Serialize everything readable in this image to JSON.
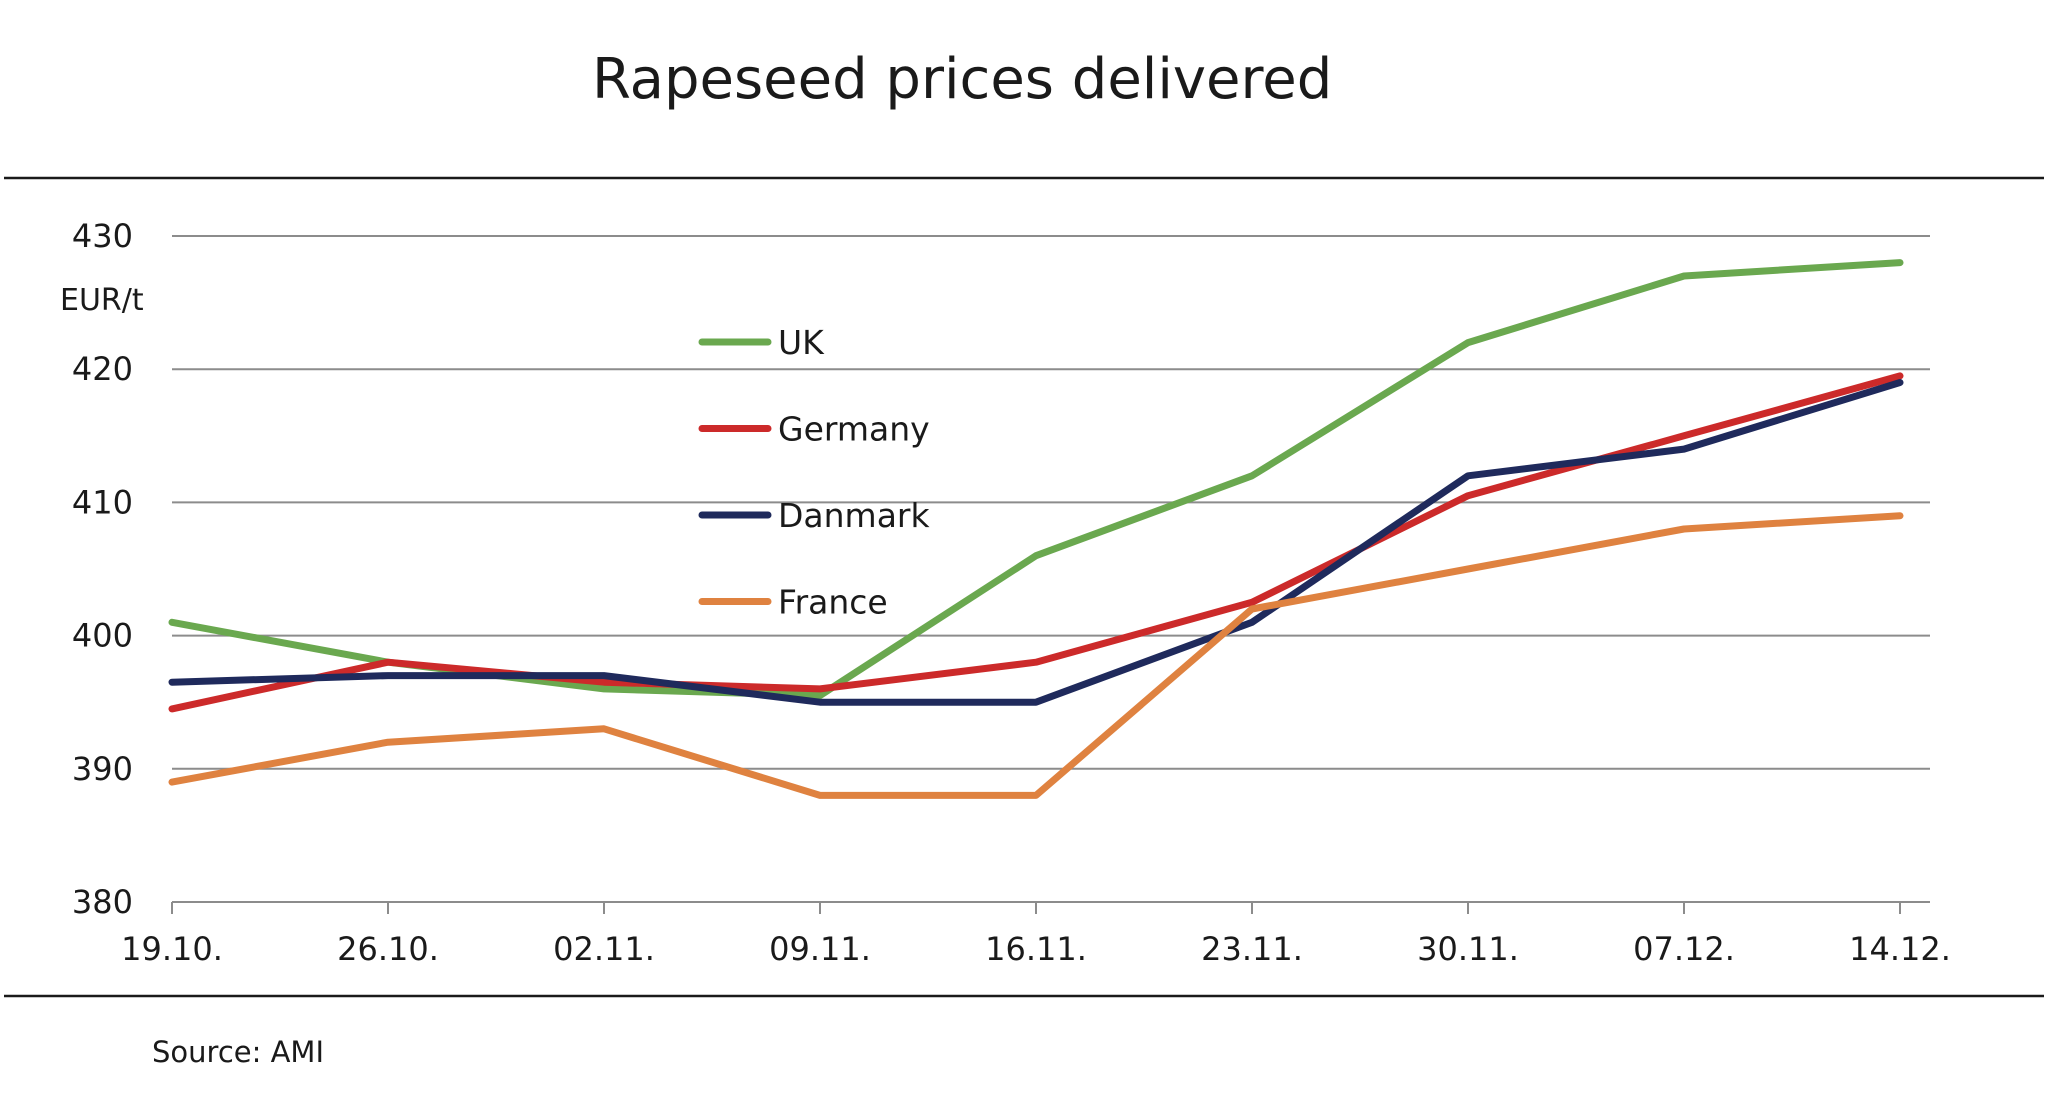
{
  "chart_data": {
    "type": "line",
    "title": "Rapeseed prices delivered",
    "ylabel": "EUR/t",
    "xlabel": "",
    "x": [
      "19.10.",
      "26.10.",
      "02.11.",
      "09.11.",
      "16.11.",
      "23.11.",
      "30.11.",
      "07.12.",
      "14.12."
    ],
    "ylim": [
      380,
      430
    ],
    "yticks": [
      380,
      390,
      400,
      410,
      420,
      430
    ],
    "grid": true,
    "legend_position": "upper-center",
    "series": [
      {
        "name": "UK",
        "color": "#6aa84f",
        "values": [
          401,
          398,
          396,
          395.5,
          406,
          412,
          422,
          427,
          428
        ]
      },
      {
        "name": "Germany",
        "color": "#cc2a2a",
        "values": [
          394.5,
          398,
          396.5,
          396,
          398,
          402.5,
          410.5,
          415,
          419.5
        ]
      },
      {
        "name": "Danmark",
        "color": "#1f2a5c",
        "values": [
          396.5,
          397,
          397,
          395,
          395,
          401,
          412,
          414,
          419
        ]
      },
      {
        "name": "France",
        "color": "#df8240",
        "values": [
          389,
          392,
          393,
          388,
          388,
          402,
          405,
          408,
          409
        ]
      }
    ]
  },
  "source": "Source: AMI"
}
